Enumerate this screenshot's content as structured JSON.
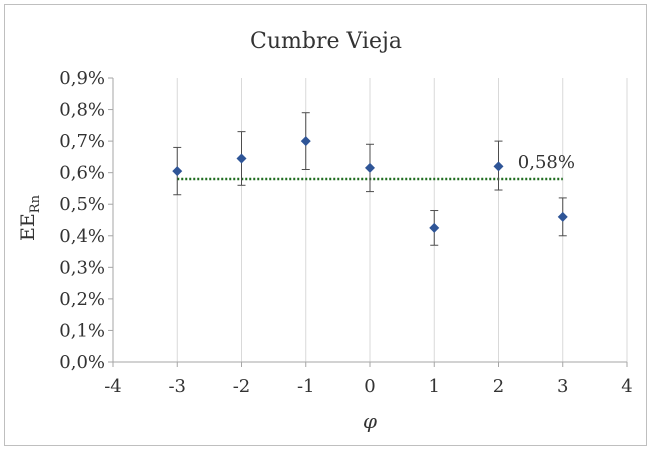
{
  "chart_data": {
    "type": "scatter",
    "title": "Cumbre Vieja",
    "xlabel": "φ",
    "ylabel_main": "EE",
    "ylabel_sub": "Rn",
    "xlim": [
      -4,
      4
    ],
    "ylim": [
      0,
      0.9
    ],
    "x_ticks": [
      {
        "value": -4,
        "label": "-4"
      },
      {
        "value": -3,
        "label": "-3"
      },
      {
        "value": -2,
        "label": "-2"
      },
      {
        "value": -1,
        "label": "-1"
      },
      {
        "value": 0,
        "label": "0"
      },
      {
        "value": 1,
        "label": "1"
      },
      {
        "value": 2,
        "label": "2"
      },
      {
        "value": 3,
        "label": "3"
      },
      {
        "value": 4,
        "label": "4"
      }
    ],
    "y_ticks": [
      {
        "value": 0.0,
        "label": "0,0%"
      },
      {
        "value": 0.1,
        "label": "0,1%"
      },
      {
        "value": 0.2,
        "label": "0,2%"
      },
      {
        "value": 0.3,
        "label": "0,3%"
      },
      {
        "value": 0.4,
        "label": "0,4%"
      },
      {
        "value": 0.5,
        "label": "0,5%"
      },
      {
        "value": 0.6,
        "label": "0,6%"
      },
      {
        "value": 0.7,
        "label": "0,7%"
      },
      {
        "value": 0.8,
        "label": "0,8%"
      },
      {
        "value": 0.9,
        "label": "0,9%"
      }
    ],
    "grid": "vertical",
    "points": [
      {
        "x": -3,
        "y": 0.605,
        "err_low": 0.53,
        "err_high": 0.68
      },
      {
        "x": -2,
        "y": 0.645,
        "err_low": 0.56,
        "err_high": 0.73
      },
      {
        "x": -1,
        "y": 0.7,
        "err_low": 0.61,
        "err_high": 0.79
      },
      {
        "x": 0,
        "y": 0.615,
        "err_low": 0.54,
        "err_high": 0.69
      },
      {
        "x": 1,
        "y": 0.425,
        "err_low": 0.37,
        "err_high": 0.48
      },
      {
        "x": 2,
        "y": 0.62,
        "err_low": 0.545,
        "err_high": 0.7
      },
      {
        "x": 3,
        "y": 0.46,
        "err_low": 0.4,
        "err_high": 0.52
      }
    ],
    "mean_line": {
      "value": 0.58,
      "x_start": -3,
      "x_end": 3,
      "label": "0,58%"
    },
    "colors": {
      "marker": "#2f5597",
      "mean_line": "#1e6b1e",
      "error_bar": "#4d4d4d",
      "grid": "#d9d9d9"
    }
  }
}
